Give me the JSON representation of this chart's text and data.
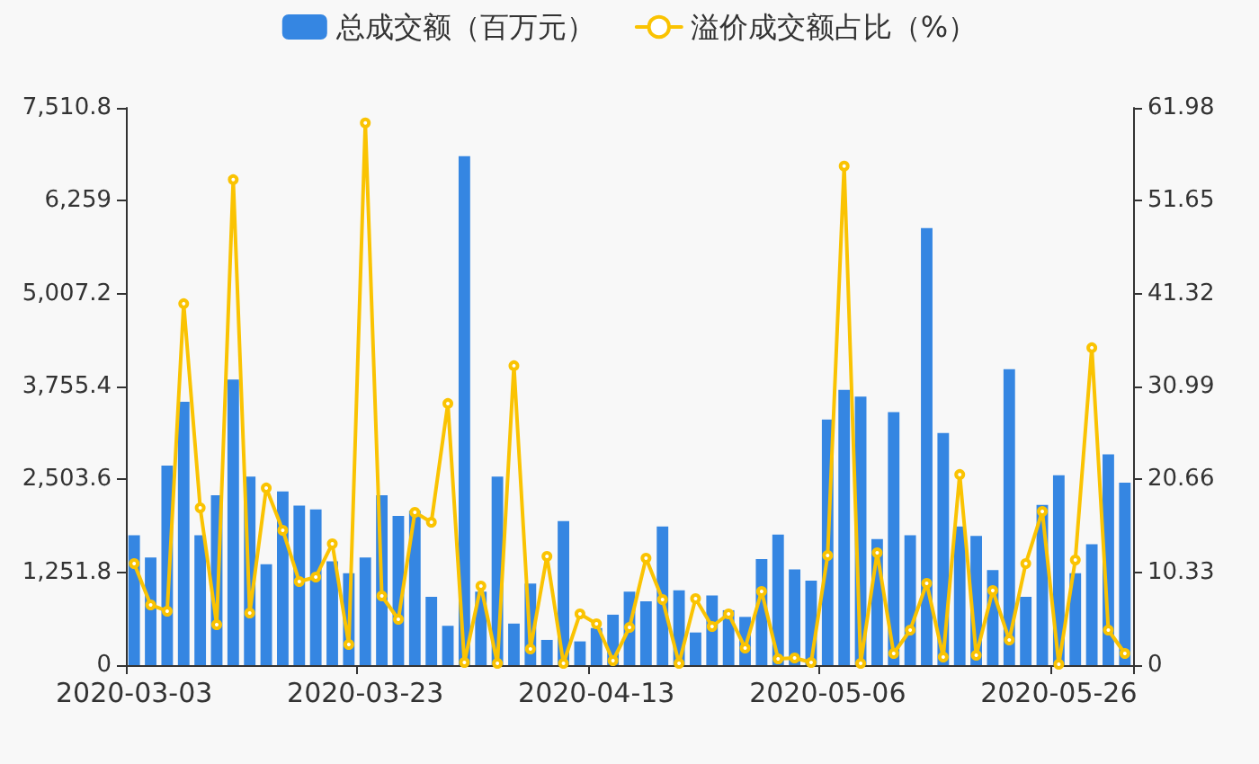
{
  "chart_data": {
    "type": "bar",
    "categories": [
      "2020-03-03",
      null,
      null,
      null,
      null,
      null,
      null,
      null,
      null,
      null,
      null,
      null,
      null,
      null,
      "2020-03-23",
      null,
      null,
      null,
      null,
      null,
      null,
      null,
      null,
      null,
      null,
      null,
      null,
      null,
      "2020-04-13",
      null,
      null,
      null,
      null,
      null,
      null,
      null,
      null,
      null,
      null,
      null,
      null,
      null,
      "2020-05-06",
      null,
      null,
      null,
      null,
      null,
      null,
      null,
      null,
      null,
      null,
      null,
      null,
      null,
      "2020-05-26",
      null,
      null,
      null,
      null
    ],
    "series": [
      {
        "name": "总成交额（百万元）",
        "color": "#3586e2",
        "values": [
          1750,
          1450,
          2690,
          3550,
          1750,
          2290,
          3850,
          2540,
          1360,
          2340,
          2150,
          2100,
          1400,
          1240,
          1450,
          2290,
          2010,
          2080,
          920,
          530,
          6860,
          990,
          2540,
          560,
          1100,
          340,
          1940,
          320,
          500,
          680,
          990,
          860,
          1870,
          1010,
          440,
          940,
          740,
          650,
          1430,
          1760,
          1290,
          1140,
          3310,
          3710,
          3620,
          1700,
          3410,
          1750,
          5890,
          3130,
          1870,
          1740,
          1280,
          3990,
          920,
          2160,
          2560,
          1240,
          1630,
          2840,
          2460
        ]
      },
      {
        "name": "溢价成交额占比（%）",
        "type": "line",
        "axis": "y2",
        "color": "#fac302",
        "values": [
          11.3,
          6.7,
          6.0,
          40.2,
          17.5,
          4.5,
          54.0,
          5.8,
          19.7,
          15.0,
          9.3,
          9.8,
          13.5,
          2.3,
          60.3,
          7.7,
          5.1,
          17.0,
          15.9,
          29.1,
          0.3,
          8.8,
          0.2,
          33.3,
          1.8,
          12.1,
          0.2,
          5.7,
          4.6,
          0.5,
          4.2,
          11.9,
          7.3,
          0.2,
          7.4,
          4.3,
          5.7,
          1.9,
          8.2,
          0.7,
          0.8,
          0.3,
          12.2,
          55.5,
          0.2,
          12.5,
          1.3,
          3.9,
          9.1,
          0.9,
          21.2,
          1.1,
          8.3,
          2.8,
          11.3,
          17.1,
          0.1,
          11.7,
          35.3,
          3.9,
          1.3
        ]
      }
    ],
    "ylim": [
      0,
      7510.8
    ],
    "yticks": [
      0,
      {
        "value": 1251.8,
        "label": "1,251.8"
      },
      {
        "value": 2503.6,
        "label": "2,503.6"
      },
      {
        "value": 3755.4,
        "label": "3,755.4"
      },
      {
        "value": 5007.2,
        "label": "5,007.2"
      },
      {
        "value": 6259,
        "label": "6,259"
      },
      {
        "value": 7510.8,
        "label": "7,510.8"
      }
    ],
    "y2lim": [
      0,
      61.98
    ],
    "y2ticks": [
      0,
      10.33,
      20.66,
      30.99,
      41.32,
      51.65,
      61.98
    ],
    "grid": false,
    "legend": "top",
    "marker": "circle",
    "line_style": "solid"
  }
}
